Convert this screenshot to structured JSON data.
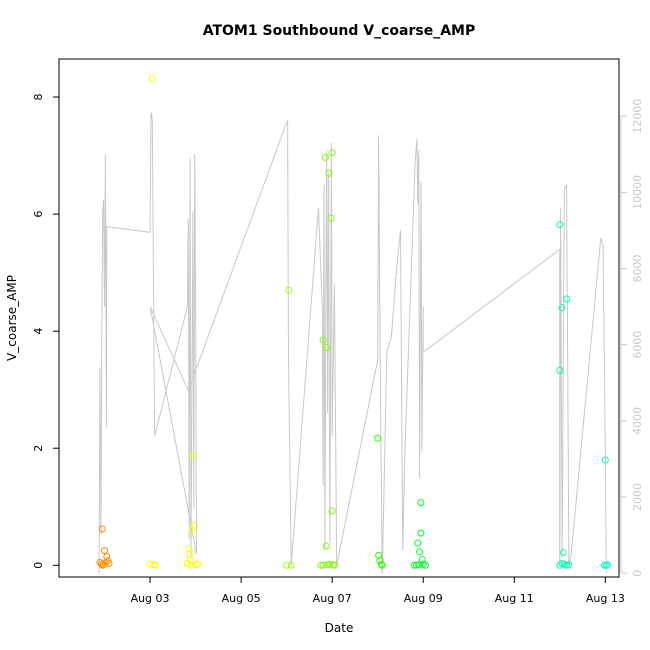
{
  "chart_data": {
    "type": "scatter",
    "title": "ATOM1 Southbound V_coarse_AMP",
    "xlabel": "Date",
    "ylabel": "V_coarse_AMP",
    "x_ticks": [
      "Aug 03",
      "Aug 05",
      "Aug 07",
      "Aug 09",
      "Aug 11",
      "Aug 13"
    ],
    "y_ticks": [
      "0",
      "2",
      "4",
      "6",
      "8"
    ],
    "y2_ticks": [
      "0",
      "2000",
      "4000",
      "6000",
      "8000",
      "10000",
      "12000"
    ],
    "xlim": [
      1.0,
      13.3
    ],
    "ylim": [
      -0.2,
      8.65
    ],
    "y2lim": [
      -100,
      13500
    ],
    "grid": false,
    "line_color": "#c8c8c8",
    "series": [
      {
        "color": "#ff8c00",
        "points": [
          [
            1.95,
            0.62
          ],
          [
            2.0,
            0.25
          ],
          [
            2.05,
            0.15
          ],
          [
            1.9,
            0.05
          ],
          [
            1.93,
            0.02
          ],
          [
            1.96,
            0.0
          ],
          [
            2.02,
            0.04
          ],
          [
            2.07,
            0.08
          ],
          [
            1.98,
            0.01
          ],
          [
            2.1,
            0.03
          ]
        ]
      },
      {
        "color": "#ffff00",
        "points": [
          [
            3.05,
            8.32
          ],
          [
            3.0,
            0.02
          ],
          [
            3.08,
            0.01
          ],
          [
            3.12,
            0.0
          ],
          [
            3.85,
            0.28
          ],
          [
            3.88,
            0.2
          ],
          [
            3.92,
            0.6
          ],
          [
            3.98,
            0.68
          ],
          [
            3.95,
            1.87
          ],
          [
            3.82,
            0.03
          ],
          [
            3.9,
            0.0
          ],
          [
            4.0,
            0.01
          ],
          [
            4.05,
            0.02
          ],
          [
            3.87,
            0.1
          ]
        ]
      },
      {
        "color": "#a6ff00",
        "points": [
          [
            6.05,
            4.7
          ],
          [
            6.0,
            0.0
          ],
          [
            6.1,
            0.0
          ]
        ]
      },
      {
        "color": "#7fff00",
        "points": [
          [
            6.85,
            6.97
          ],
          [
            7.0,
            7.05
          ],
          [
            6.93,
            6.7
          ],
          [
            6.98,
            5.93
          ],
          [
            6.8,
            3.85
          ],
          [
            6.88,
            3.72
          ],
          [
            6.87,
            0.33
          ],
          [
            7.0,
            0.93
          ],
          [
            6.8,
            0.0
          ],
          [
            6.9,
            0.01
          ],
          [
            6.95,
            0.02
          ],
          [
            7.05,
            0.0
          ],
          [
            6.75,
            0.0
          ],
          [
            7.02,
            0.01
          ]
        ]
      },
      {
        "color": "#2eff00",
        "points": [
          [
            8.0,
            2.17
          ],
          [
            8.02,
            0.17
          ],
          [
            8.05,
            0.08
          ],
          [
            8.08,
            0.02
          ],
          [
            8.1,
            0.0
          ]
        ]
      },
      {
        "color": "#00ff2a",
        "points": [
          [
            8.88,
            0.38
          ],
          [
            8.92,
            0.23
          ],
          [
            8.95,
            1.07
          ],
          [
            8.95,
            0.55
          ],
          [
            8.98,
            0.1
          ],
          [
            8.85,
            0.0
          ],
          [
            8.9,
            0.01
          ],
          [
            9.0,
            0.02
          ],
          [
            9.05,
            0.0
          ],
          [
            8.8,
            0.0
          ]
        ]
      },
      {
        "color": "#00ffb3",
        "points": [
          [
            12.0,
            5.82
          ],
          [
            12.05,
            4.4
          ],
          [
            12.15,
            4.55
          ],
          [
            12.0,
            3.33
          ],
          [
            12.08,
            0.22
          ],
          [
            12.0,
            0.0
          ],
          [
            12.1,
            0.02
          ],
          [
            12.2,
            0.01
          ],
          [
            12.05,
            0.03
          ],
          [
            12.15,
            0.0
          ]
        ]
      },
      {
        "color": "#00ffcc",
        "points": [
          [
            13.0,
            1.8
          ],
          [
            12.98,
            0.0
          ],
          [
            13.02,
            0.0
          ],
          [
            13.05,
            0.01
          ]
        ]
      }
    ],
    "secondary_line": {
      "axis": "right",
      "points": [
        [
          1.88,
          0
        ],
        [
          1.9,
          5400
        ],
        [
          1.92,
          1000
        ],
        [
          1.94,
          6200
        ],
        [
          1.96,
          9500
        ],
        [
          1.98,
          9800
        ],
        [
          2.0,
          7000
        ],
        [
          2.02,
          11000
        ],
        [
          2.04,
          3800
        ],
        [
          2.05,
          9100
        ],
        [
          3.0,
          8950
        ],
        [
          3.02,
          12100
        ],
        [
          3.05,
          11900
        ],
        [
          3.1,
          3600
        ],
        [
          3.82,
          7000
        ],
        [
          3.84,
          9300
        ],
        [
          3.86,
          900
        ],
        [
          3.88,
          10900
        ],
        [
          3.9,
          400
        ],
        [
          3.94,
          9500
        ],
        [
          3.96,
          1700
        ],
        [
          3.98,
          11000
        ],
        [
          4.0,
          7200
        ],
        [
          4.02,
          500
        ],
        [
          3.0,
          7000
        ],
        [
          3.84,
          4800
        ],
        [
          6.02,
          11900
        ],
        [
          6.04,
          5600
        ],
        [
          6.1,
          200
        ],
        [
          6.7,
          9600
        ],
        [
          6.78,
          7000
        ],
        [
          6.8,
          2300
        ],
        [
          6.82,
          10200
        ],
        [
          6.84,
          600
        ],
        [
          6.86,
          7000
        ],
        [
          6.88,
          11100
        ],
        [
          6.9,
          4200
        ],
        [
          6.92,
          10500
        ],
        [
          6.95,
          800
        ],
        [
          6.98,
          11300
        ],
        [
          7.0,
          3600
        ],
        [
          7.05,
          7600
        ],
        [
          7.1,
          200
        ],
        [
          8.0,
          5600
        ],
        [
          8.02,
          11500
        ],
        [
          8.06,
          4700
        ],
        [
          8.1,
          0
        ],
        [
          8.2,
          5800
        ],
        [
          8.3,
          6200
        ],
        [
          8.4,
          7800
        ],
        [
          8.5,
          9000
        ],
        [
          8.55,
          600
        ],
        [
          8.6,
          3300
        ],
        [
          8.82,
          10700
        ],
        [
          8.86,
          11400
        ],
        [
          8.88,
          9700
        ],
        [
          8.9,
          11100
        ],
        [
          8.92,
          2500
        ],
        [
          8.95,
          10300
        ],
        [
          8.97,
          3200
        ],
        [
          9.0,
          7000
        ],
        [
          9.0,
          5800
        ],
        [
          12.0,
          8500
        ],
        [
          12.0,
          300
        ],
        [
          12.02,
          9600
        ],
        [
          12.05,
          400
        ],
        [
          12.1,
          10100
        ],
        [
          12.15,
          10200
        ],
        [
          12.2,
          200
        ],
        [
          12.25,
          500
        ],
        [
          12.9,
          8800
        ],
        [
          12.95,
          8600
        ],
        [
          13.0,
          3200
        ],
        [
          13.02,
          0
        ]
      ]
    }
  }
}
